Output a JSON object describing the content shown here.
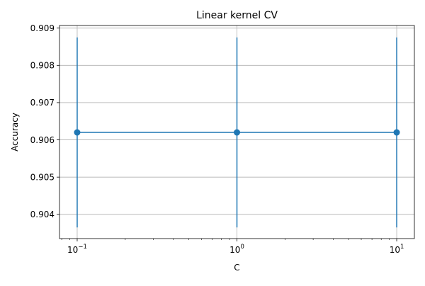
{
  "chart_data": {
    "type": "line",
    "title": "Linear kernel CV",
    "xlabel": "C",
    "ylabel": "Accuracy",
    "x_scale": "log",
    "x": [
      0.1,
      1,
      10
    ],
    "xlim": [
      0.0775,
      12.9
    ],
    "ylim": [
      0.90335,
      0.90907
    ],
    "y_ticks": [
      "0.904",
      "0.905",
      "0.906",
      "0.907",
      "0.908",
      "0.909"
    ],
    "y_tick_values": [
      0.904,
      0.905,
      0.906,
      0.907,
      0.908,
      0.909
    ],
    "x_ticks": [
      {
        "base": "10",
        "exp": "−1",
        "value": 0.1
      },
      {
        "base": "10",
        "exp": "0",
        "value": 1
      },
      {
        "base": "10",
        "exp": "1",
        "value": 10
      }
    ],
    "grid": true,
    "series": [
      {
        "values": [
          0.9062,
          0.9062,
          0.9062
        ],
        "error_low": [
          0.90365,
          0.90365,
          0.90365
        ],
        "error_high": [
          0.90875,
          0.90875,
          0.90875
        ],
        "color": "#1f77b4",
        "marker": "circle"
      }
    ]
  }
}
